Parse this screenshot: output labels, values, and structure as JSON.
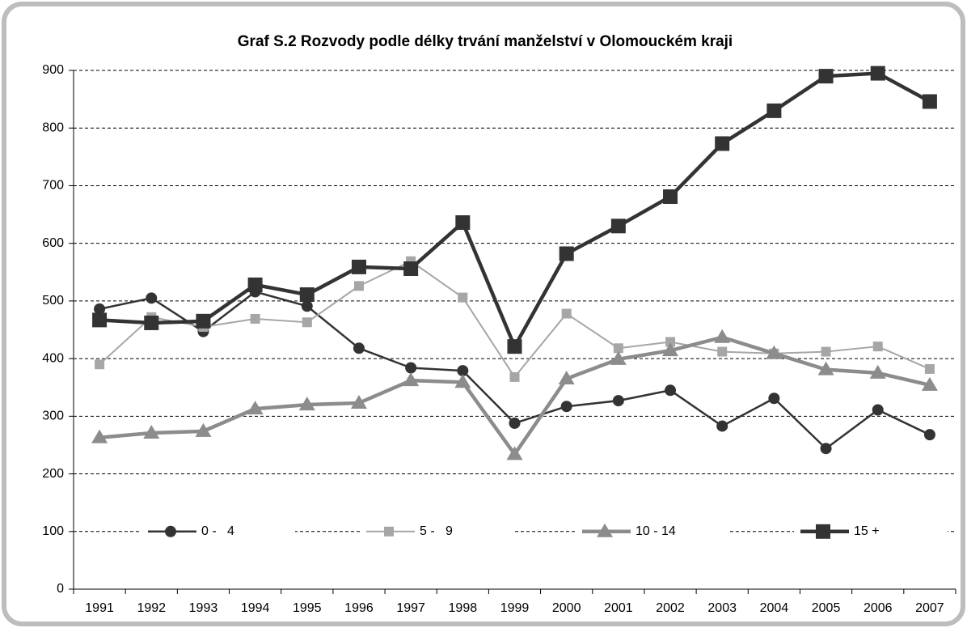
{
  "chart_data": {
    "type": "line",
    "title": "Graf S.2 Rozvody podle délky trvání manželství v Olomouckém kraji",
    "categories": [
      "1991",
      "1992",
      "1993",
      "1994",
      "1995",
      "1996",
      "1997",
      "1998",
      "1999",
      "2000",
      "2001",
      "2002",
      "2003",
      "2004",
      "2005",
      "2006",
      "2007"
    ],
    "series": [
      {
        "name": "0 -   4",
        "color": "#333333",
        "marker": "circle",
        "values": [
          486,
          505,
          447,
          516,
          491,
          418,
          384,
          379,
          288,
          317,
          327,
          345,
          283,
          331,
          244,
          311,
          268
        ]
      },
      {
        "name": "5 -   9",
        "color": "#a6a6a6",
        "marker": "square",
        "values": [
          390,
          472,
          455,
          469,
          463,
          526,
          569,
          506,
          368,
          478,
          418,
          429,
          412,
          409,
          412,
          421,
          382
        ]
      },
      {
        "name": "10 - 14",
        "color": "#8c8c8c",
        "marker": "triangle",
        "values": [
          263,
          271,
          274,
          313,
          320,
          323,
          362,
          359,
          234,
          365,
          399,
          414,
          437,
          409,
          381,
          375,
          354
        ]
      },
      {
        "name": "15 +",
        "color": "#333333",
        "marker": "bigsquare",
        "values": [
          467,
          462,
          465,
          528,
          511,
          559,
          556,
          636,
          421,
          582,
          630,
          681,
          773,
          830,
          890,
          895,
          846
        ]
      }
    ],
    "ylim": [
      0,
      900
    ],
    "yticks": [
      0,
      100,
      200,
      300,
      400,
      500,
      600,
      700,
      800,
      900
    ],
    "grid": true,
    "legend": "bottom"
  }
}
